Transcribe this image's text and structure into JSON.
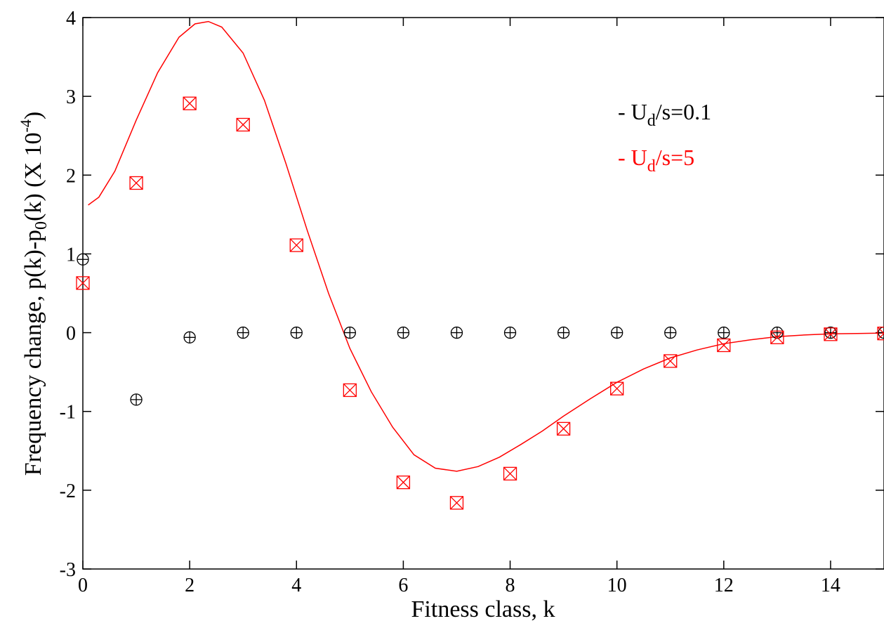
{
  "chart_data": {
    "type": "scatter",
    "xlabel": "Fitness class, k",
    "ylabel": {
      "main": "Frequency change, p(k)-p",
      "sub": "0",
      "rest": "(k) (X 10",
      "sup": "-4",
      "close": ")"
    },
    "xlim": [
      0,
      15
    ],
    "ylim": [
      -3,
      4
    ],
    "x_ticks": [
      0,
      2,
      4,
      6,
      8,
      10,
      12,
      14
    ],
    "y_ticks": [
      -3,
      -2,
      -1,
      0,
      1,
      2,
      3,
      4
    ],
    "grid": false,
    "legend_position": "top-right",
    "series": [
      {
        "name": "U_d/s=0.1",
        "legend": {
          "dash": "- U",
          "sub": "d",
          "rest": "/s=0.1"
        },
        "color": "#000000",
        "marker": "circle-plus",
        "points": [
          {
            "x": 0,
            "y": 0.93
          },
          {
            "x": 1,
            "y": -0.85
          },
          {
            "x": 2,
            "y": -0.06
          },
          {
            "x": 3,
            "y": 0.0
          },
          {
            "x": 4,
            "y": 0.0
          },
          {
            "x": 5,
            "y": 0.0
          },
          {
            "x": 6,
            "y": 0.0
          },
          {
            "x": 7,
            "y": 0.0
          },
          {
            "x": 8,
            "y": 0.0
          },
          {
            "x": 9,
            "y": 0.0
          },
          {
            "x": 10,
            "y": 0.0
          },
          {
            "x": 11,
            "y": 0.0
          },
          {
            "x": 12,
            "y": 0.0
          },
          {
            "x": 13,
            "y": 0.0
          },
          {
            "x": 14,
            "y": 0.0
          },
          {
            "x": 15,
            "y": 0.0
          }
        ]
      },
      {
        "name": "U_d/s=5",
        "legend": {
          "dash": "- U",
          "sub": "d",
          "rest": "/s=5"
        },
        "color": "#ff0000",
        "marker": "square-x",
        "points": [
          {
            "x": 0,
            "y": 0.63
          },
          {
            "x": 1,
            "y": 1.9
          },
          {
            "x": 2,
            "y": 2.91
          },
          {
            "x": 3,
            "y": 2.64
          },
          {
            "x": 4,
            "y": 1.11
          },
          {
            "x": 5,
            "y": -0.73
          },
          {
            "x": 6,
            "y": -1.9
          },
          {
            "x": 7,
            "y": -2.16
          },
          {
            "x": 8,
            "y": -1.79
          },
          {
            "x": 9,
            "y": -1.22
          },
          {
            "x": 10,
            "y": -0.71
          },
          {
            "x": 11,
            "y": -0.36
          },
          {
            "x": 12,
            "y": -0.16
          },
          {
            "x": 13,
            "y": -0.06
          },
          {
            "x": 14,
            "y": -0.02
          },
          {
            "x": 15,
            "y": -0.01
          }
        ]
      }
    ],
    "curve": {
      "color": "#ff0000",
      "points": [
        [
          0.1,
          1.62
        ],
        [
          0.3,
          1.72
        ],
        [
          0.6,
          2.05
        ],
        [
          1.0,
          2.7
        ],
        [
          1.4,
          3.3
        ],
        [
          1.8,
          3.75
        ],
        [
          2.1,
          3.92
        ],
        [
          2.35,
          3.95
        ],
        [
          2.6,
          3.88
        ],
        [
          3.0,
          3.55
        ],
        [
          3.4,
          2.95
        ],
        [
          3.8,
          2.15
        ],
        [
          4.2,
          1.3
        ],
        [
          4.6,
          0.5
        ],
        [
          5.0,
          -0.2
        ],
        [
          5.4,
          -0.75
        ],
        [
          5.8,
          -1.2
        ],
        [
          6.2,
          -1.55
        ],
        [
          6.6,
          -1.72
        ],
        [
          7.0,
          -1.76
        ],
        [
          7.4,
          -1.7
        ],
        [
          7.8,
          -1.58
        ],
        [
          8.2,
          -1.42
        ],
        [
          8.6,
          -1.25
        ],
        [
          9.0,
          -1.06
        ],
        [
          9.5,
          -0.84
        ],
        [
          10.0,
          -0.63
        ],
        [
          10.5,
          -0.46
        ],
        [
          11.0,
          -0.32
        ],
        [
          11.5,
          -0.22
        ],
        [
          12.0,
          -0.14
        ],
        [
          12.5,
          -0.09
        ],
        [
          13.0,
          -0.05
        ],
        [
          13.5,
          -0.03
        ],
        [
          14.0,
          -0.015
        ],
        [
          14.5,
          -0.01
        ],
        [
          15.0,
          -0.005
        ]
      ]
    }
  }
}
